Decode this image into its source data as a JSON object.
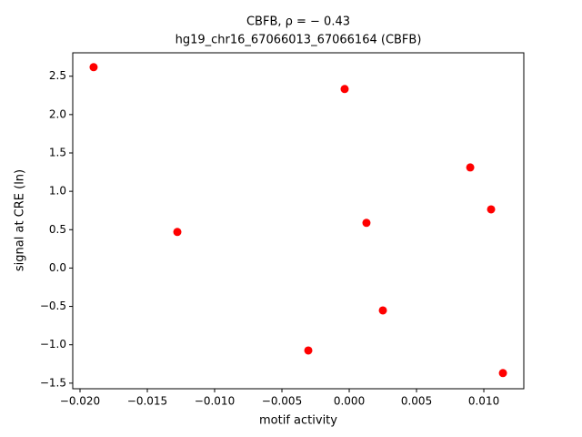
{
  "chart_data": {
    "type": "scatter",
    "title": "CBFB, ρ = − 0.43",
    "subtitle": "hg19_chr16_67066013_67066164 (CBFB)",
    "xlabel": "motif activity",
    "ylabel": "signal at CRE (ln)",
    "color": "#ff0000",
    "x": [
      -0.01899,
      -0.00034,
      0.00899,
      0.01054,
      0.00128,
      -0.01277,
      0.0025,
      -0.00304,
      0.01142
    ],
    "values": [
      2.618,
      2.333,
      1.311,
      0.765,
      0.589,
      0.47,
      -0.552,
      -1.074,
      -1.369
    ],
    "xlim": [
      -0.02054,
      0.01297
    ],
    "ylim": [
      -1.573,
      2.805
    ],
    "xticks": [
      {
        "value": -0.02,
        "label": "−0.020"
      },
      {
        "value": -0.015,
        "label": "−0.015"
      },
      {
        "value": -0.01,
        "label": "−0.010"
      },
      {
        "value": -0.005,
        "label": "−0.005"
      },
      {
        "value": 0,
        "label": "0.000"
      },
      0.005,
      {
        "value": 0.01,
        "label": "0.010"
      }
    ],
    "yticks": [
      {
        "value": -1.5,
        "label": "−1.5"
      },
      {
        "value": -1,
        "label": "−1.0"
      },
      {
        "value": -0.5,
        "label": "−0.5"
      },
      {
        "value": 0,
        "label": "0.0"
      },
      0.5,
      {
        "value": 1,
        "label": "1.0"
      },
      1.5,
      {
        "value": 2,
        "label": "2.0"
      },
      2.5
    ],
    "grid": false
  }
}
